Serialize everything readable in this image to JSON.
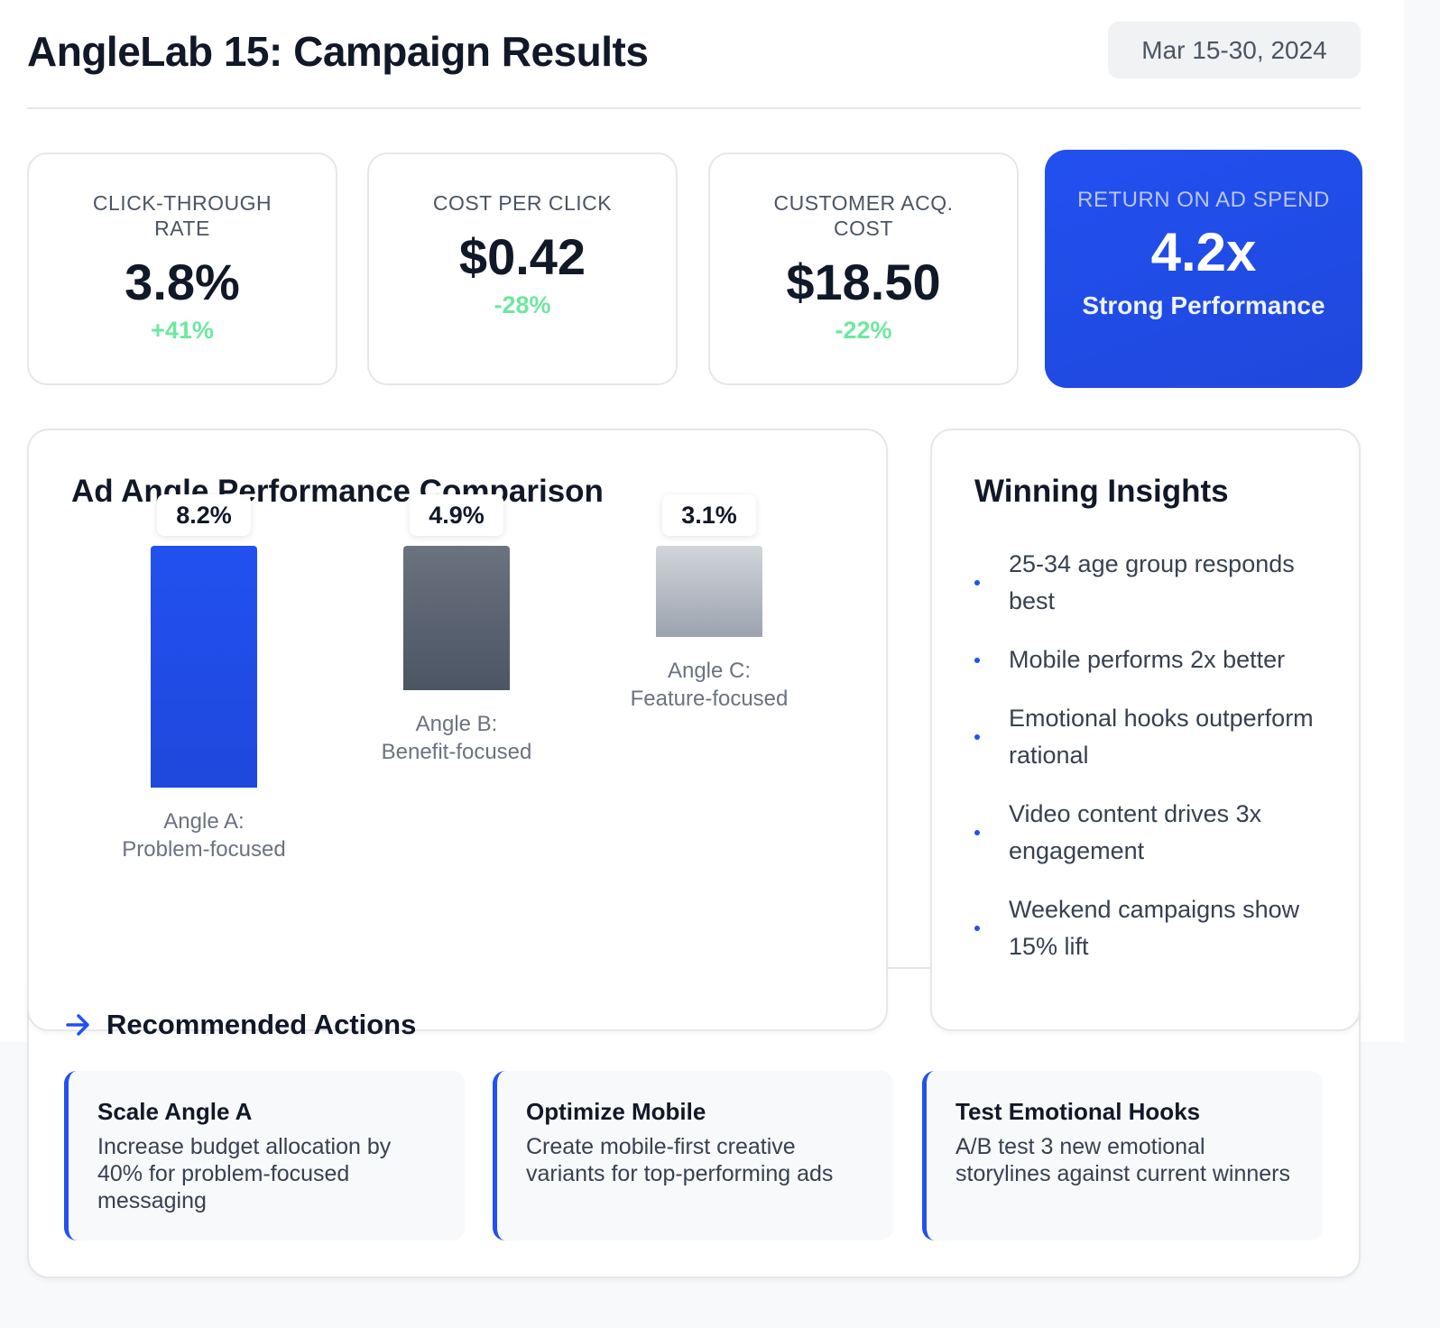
{
  "header": {
    "title": "AngleLab 15: Campaign Results",
    "date_range": "Mar 15-30, 2024"
  },
  "kpis": [
    {
      "label": "CLICK-THROUGH RATE",
      "value": "3.8%",
      "change": "+41%"
    },
    {
      "label": "COST PER CLICK",
      "value": "$0.42",
      "change": "-28%"
    },
    {
      "label": "CUSTOMER ACQ. COST",
      "value": "$18.50",
      "change": "-22%"
    }
  ],
  "roas": {
    "label": "RETURN ON AD SPEND",
    "value": "4.2x",
    "status": "Strong Performance"
  },
  "chart_data": {
    "type": "bar",
    "title": "Ad Angle Performance Comparison",
    "categories": [
      "Angle A: Problem-focused",
      "Angle B: Benefit-focused",
      "Angle C: Feature-focused"
    ],
    "values": [
      8.2,
      4.9,
      3.1
    ],
    "value_labels": [
      "8.2%",
      "4.9%",
      "3.1%"
    ],
    "colors": [
      "#2251f0",
      "#4b5563",
      "#9ca3af"
    ]
  },
  "insights": {
    "title": "Winning Insights",
    "items": [
      "25-34 age group responds best",
      "Mobile performs 2x better",
      "Emotional hooks outperform rational",
      "Video content drives 3x engagement",
      "Weekend campaigns show 15% lift"
    ]
  },
  "actions": {
    "title": "Recommended Actions",
    "icon": "arrow-right-icon",
    "items": [
      {
        "title": "Scale Angle A",
        "desc": "Increase budget allocation by 40% for problem-focused messaging"
      },
      {
        "title": "Optimize Mobile",
        "desc": "Create mobile-first creative variants for top-performing ads"
      },
      {
        "title": "Test Emotional Hooks",
        "desc": "A/B test 3 new emotional storylines against current winners"
      }
    ]
  }
}
